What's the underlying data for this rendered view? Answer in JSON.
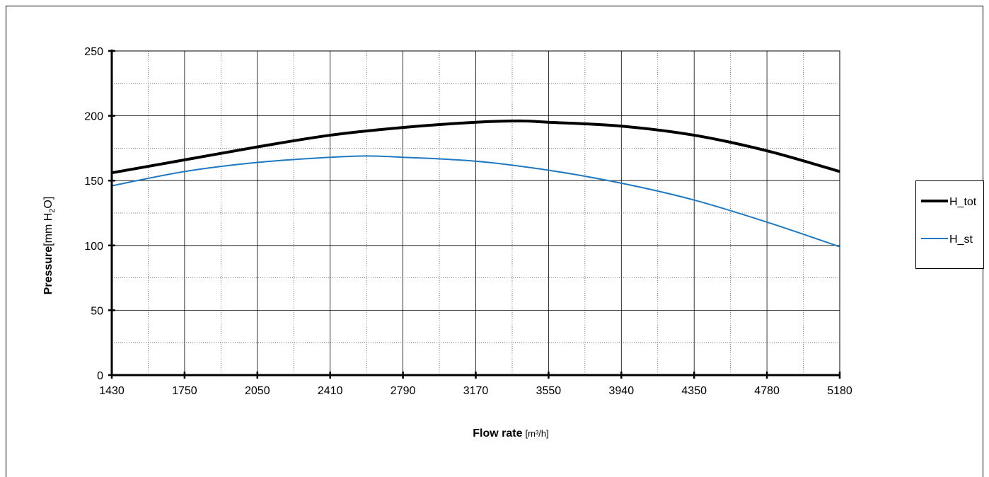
{
  "chart_data": {
    "type": "line",
    "xlabel": "Flow rate",
    "xlabel_unit": "[m³/h]",
    "ylabel": "Pressure",
    "ylabel_unit_pre": "[mm H",
    "ylabel_unit_sub": "2",
    "ylabel_unit_post": "O]",
    "x_categories": [
      "1430",
      "1750",
      "2050",
      "2410",
      "2790",
      "3170",
      "3550",
      "3940",
      "4350",
      "4780",
      "5180"
    ],
    "ylim": [
      0,
      250
    ],
    "y_ticks": [
      "0",
      "50",
      "100",
      "150",
      "200",
      "250"
    ],
    "grid": true,
    "legend_position": "right",
    "series": [
      {
        "name": "H_tot",
        "color": "#000000",
        "x": [
          1430,
          1750,
          2050,
          2410,
          2790,
          3170,
          3400,
          3550,
          3940,
          4350,
          4780,
          5180
        ],
        "values": [
          156,
          166,
          176,
          185,
          191,
          195,
          196,
          195,
          192,
          185,
          173,
          157
        ]
      },
      {
        "name": "H_st",
        "color": "#1F78C1",
        "x": [
          1430,
          1750,
          2050,
          2410,
          2600,
          2790,
          3170,
          3550,
          3940,
          4350,
          4780,
          5180
        ],
        "values": [
          146,
          157,
          164,
          168,
          169,
          168,
          165,
          158,
          148,
          135,
          118,
          99
        ]
      }
    ]
  }
}
